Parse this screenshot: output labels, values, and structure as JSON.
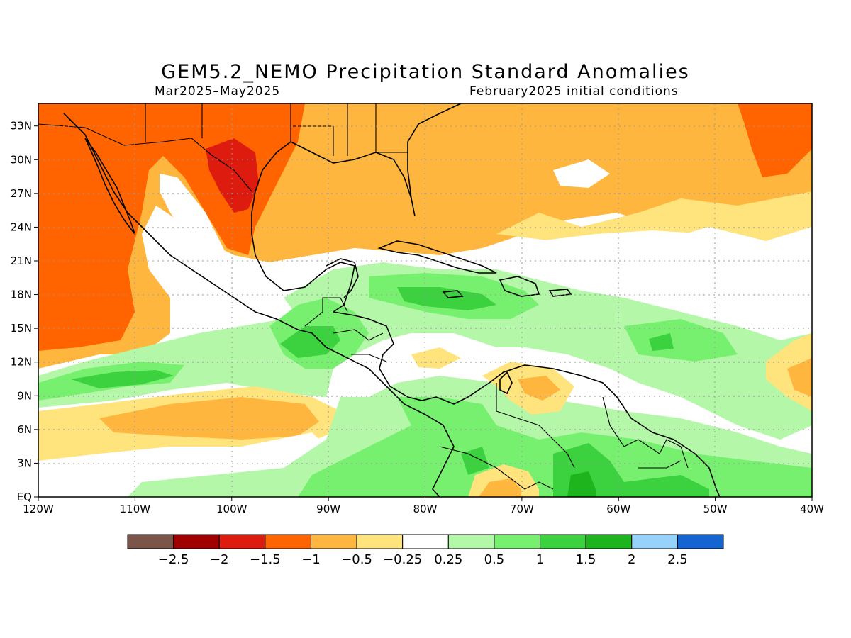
{
  "title": "GEM5.2_NEMO Precipitation Standard Anomalies",
  "period": "Mar2025–May2025",
  "initial_conditions": "February2025 initial conditions",
  "map": {
    "lon_range": [
      -120,
      -40
    ],
    "lat_range": [
      0,
      35
    ],
    "lon_ticks": [
      {
        "value": -120,
        "label": "120W"
      },
      {
        "value": -110,
        "label": "110W"
      },
      {
        "value": -100,
        "label": "100W"
      },
      {
        "value": -90,
        "label": "90W"
      },
      {
        "value": -80,
        "label": "80W"
      },
      {
        "value": -70,
        "label": "70W"
      },
      {
        "value": -60,
        "label": "60W"
      },
      {
        "value": -50,
        "label": "50W"
      },
      {
        "value": -40,
        "label": "40W"
      }
    ],
    "lat_ticks": [
      {
        "value": 0,
        "label": "EQ"
      },
      {
        "value": 3,
        "label": "3N"
      },
      {
        "value": 6,
        "label": "6N"
      },
      {
        "value": 9,
        "label": "9N"
      },
      {
        "value": 12,
        "label": "12N"
      },
      {
        "value": 15,
        "label": "15N"
      },
      {
        "value": 18,
        "label": "18N"
      },
      {
        "value": 21,
        "label": "21N"
      },
      {
        "value": 24,
        "label": "24N"
      },
      {
        "value": 27,
        "label": "27N"
      },
      {
        "value": 30,
        "label": "30N"
      },
      {
        "value": 33,
        "label": "33N"
      }
    ],
    "grid": true
  },
  "legend": {
    "colors": [
      "#7b5549",
      "#a00000",
      "#dd1c0f",
      "#ff6400",
      "#ffb63f",
      "#ffe37d",
      "#ffffff",
      "#b4f7a8",
      "#78f06f",
      "#3cd13f",
      "#1eb41e",
      "#96d2fa",
      "#1464d2"
    ],
    "labels": [
      "−2.5",
      "−2",
      "−1.5",
      "−1",
      "−0.5",
      "−0.25",
      "0.25",
      "0.5",
      "1",
      "1.5",
      "2",
      "2.5"
    ]
  }
}
